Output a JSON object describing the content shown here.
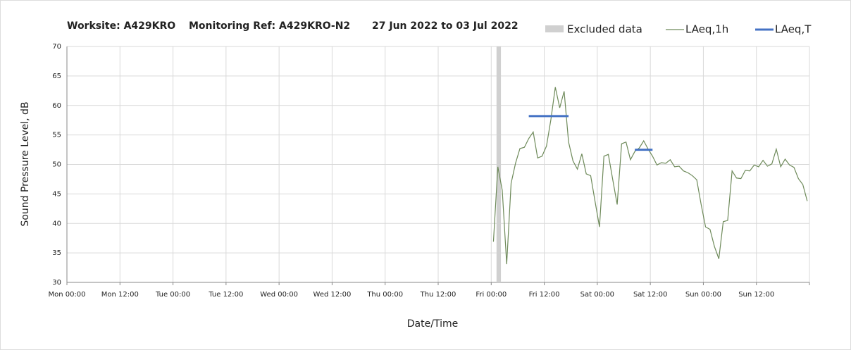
{
  "chart_data": {
    "type": "line",
    "title": [
      "Worksite: A429KRO",
      "Monitoring Ref: A429KRO-N2",
      "27 Jun 2022 to 03 Jul 2022"
    ],
    "x_label": "Date/Time",
    "y_label": "Sound Pressure Level, dB",
    "xlim": [
      0,
      168
    ],
    "xticks": [
      {
        "value": 0,
        "label": "Mon 00:00"
      },
      {
        "value": 12,
        "label": "Mon 12:00"
      },
      {
        "value": 24,
        "label": "Tue 00:00"
      },
      {
        "value": 36,
        "label": "Tue 12:00"
      },
      {
        "value": 48,
        "label": "Wed 00:00"
      },
      {
        "value": 60,
        "label": "Wed 12:00"
      },
      {
        "value": 72,
        "label": "Thu 00:00"
      },
      {
        "value": 84,
        "label": "Thu 12:00"
      },
      {
        "value": 96,
        "label": "Fri 00:00"
      },
      {
        "value": 108,
        "label": "Fri 12:00"
      },
      {
        "value": 120,
        "label": "Sat 00:00"
      },
      {
        "value": 132,
        "label": "Sat 12:00"
      },
      {
        "value": 144,
        "label": "Sun 00:00"
      },
      {
        "value": 156,
        "label": "Sun 12:00"
      },
      {
        "value": 168,
        "label": ""
      }
    ],
    "ylim": [
      30,
      70
    ],
    "yticks": [
      30,
      35,
      40,
      45,
      50,
      55,
      60,
      65,
      70
    ],
    "grid": true,
    "excluded": {
      "name": "Excluded data",
      "color": "#d0d0d0",
      "ranges": [
        [
          97.2,
          98.2
        ]
      ]
    },
    "series": [
      {
        "name": "LAeq,1h",
        "color": "#6e8a5a",
        "x": [
          96.5,
          97.5,
          98.5,
          99.5,
          100.5,
          101.5,
          102.5,
          103.5,
          104.5,
          105.5,
          106.5,
          107.5,
          108.5,
          109.5,
          110.5,
          111.5,
          112.5,
          113.5,
          114.5,
          115.5,
          116.5,
          117.5,
          118.5,
          119.5,
          120.5,
          121.5,
          122.5,
          123.5,
          124.5,
          125.5,
          126.5,
          127.5,
          128.5,
          129.5,
          130.5,
          131.5,
          132.5,
          133.5,
          134.5,
          135.5,
          136.5,
          137.5,
          138.5,
          139.5,
          140.5,
          141.5,
          142.5,
          143.5,
          144.5,
          145.5,
          146.5,
          147.5,
          148.5,
          149.5,
          150.5,
          151.5,
          152.5,
          153.5,
          154.5,
          155.5,
          156.5,
          157.5,
          158.5,
          159.5,
          160.5,
          161.5,
          162.5,
          163.5,
          164.5,
          165.5,
          166.5,
          167.5
        ],
        "values": [
          36.9,
          49.6,
          45.6,
          33.1,
          46.8,
          50.2,
          52.7,
          52.9,
          54.4,
          55.5,
          51.1,
          51.4,
          53.1,
          57.6,
          63.1,
          59.6,
          62.4,
          53.8,
          50.6,
          49.2,
          51.8,
          48.4,
          48.1,
          43.7,
          39.4,
          51.4,
          51.7,
          47.4,
          43.2,
          53.5,
          53.8,
          50.8,
          52.2,
          52.8,
          54.0,
          52.6,
          51.4,
          49.9,
          50.3,
          50.2,
          50.8,
          49.6,
          49.7,
          48.9,
          48.6,
          48.1,
          47.4,
          43.2,
          39.4,
          39.0,
          36.1,
          34.0,
          40.3,
          40.5,
          48.9,
          47.7,
          47.6,
          49.0,
          48.9,
          49.9,
          49.6,
          50.7,
          49.7,
          50.1,
          52.6,
          49.6,
          50.9,
          49.9,
          49.5,
          47.6,
          46.6,
          43.8
        ]
      },
      {
        "name": "LAeq,T",
        "color": "#4472c4",
        "segments": [
          {
            "x": [
              104.5,
              113.5
            ],
            "value": 58.2
          },
          {
            "x": [
              128.5,
              132.5
            ],
            "value": 52.5
          }
        ]
      }
    ]
  }
}
